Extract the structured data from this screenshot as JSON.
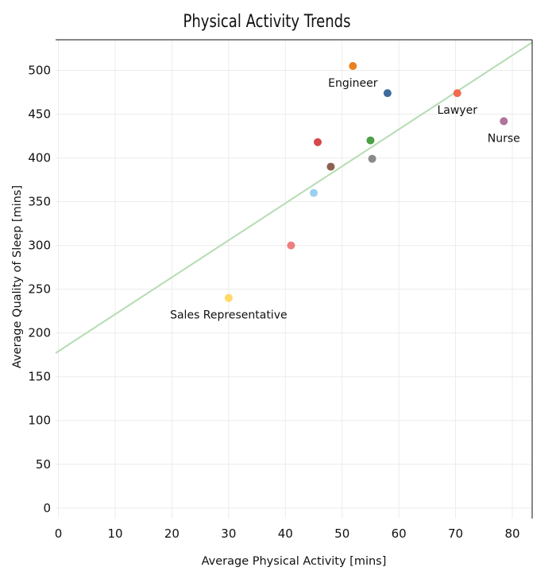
{
  "chart_data": {
    "type": "scatter",
    "title": "Physical Activity Trends",
    "xlabel": "Average Physical Activity [mins]",
    "ylabel": "Average Quality of Sleep [mins]",
    "xlim": [
      -0.5,
      83.5
    ],
    "ylim": [
      -12,
      535
    ],
    "xticks": [
      0,
      10,
      20,
      30,
      40,
      50,
      60,
      70,
      80
    ],
    "yticks": [
      0,
      50,
      100,
      150,
      200,
      250,
      300,
      350,
      400,
      450,
      500
    ],
    "grid": true,
    "points": [
      {
        "x": 30.0,
        "y": 240,
        "color": "#ffd966",
        "label": "Sales Representative"
      },
      {
        "x": 41.0,
        "y": 300,
        "color": "#ef7f7f",
        "label": ""
      },
      {
        "x": 45.0,
        "y": 360,
        "color": "#9ad0f0",
        "label": ""
      },
      {
        "x": 45.7,
        "y": 418,
        "color": "#d6484b",
        "label": ""
      },
      {
        "x": 48.0,
        "y": 390,
        "color": "#8c6151",
        "label": ""
      },
      {
        "x": 51.9,
        "y": 505,
        "color": "#e8821d",
        "label": "Engineer"
      },
      {
        "x": 55.0,
        "y": 420,
        "color": "#4ca046",
        "label": ""
      },
      {
        "x": 55.3,
        "y": 399,
        "color": "#8a8a8a",
        "label": ""
      },
      {
        "x": 58.0,
        "y": 474,
        "color": "#3e6b9b",
        "label": ""
      },
      {
        "x": 70.3,
        "y": 474,
        "color": "#f36b4f",
        "label": "Lawyer"
      },
      {
        "x": 78.5,
        "y": 442,
        "color": "#b0739c",
        "label": "Nurse"
      }
    ],
    "trendline": {
      "x": [
        -0.5,
        83.5
      ],
      "y": [
        177,
        532
      ],
      "color": "#b5dcb2"
    }
  }
}
